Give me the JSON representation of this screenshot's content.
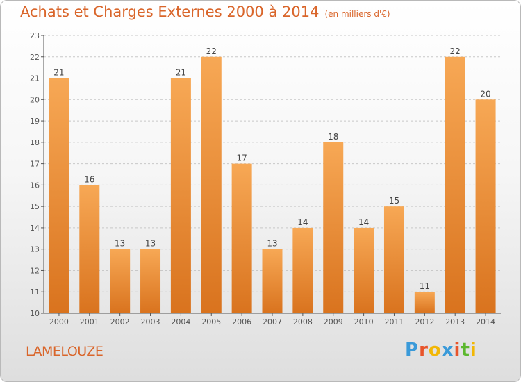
{
  "header": {
    "title": "Achats et Charges Externes 2000 à 2014",
    "unit": "(en milliers d'€)"
  },
  "footer": {
    "commune": "LAMELOUZE",
    "logo_text": "Proxiti",
    "logo_colors": [
      "#3a9ad9",
      "#e8542b",
      "#f2b705",
      "#3a9ad9",
      "#e8542b",
      "#5cb82e",
      "#f2b705"
    ]
  },
  "colors": {
    "bar_light": "#f7a855",
    "bar_dark": "#d9731e",
    "title": "#d9652a",
    "axis": "#555555",
    "grid": "#c8c8c8"
  },
  "chart_data": {
    "type": "bar",
    "title": "Achats et Charges Externes 2000 à 2014",
    "subtitle": "(en milliers d'€)",
    "xlabel": "",
    "ylabel": "",
    "categories": [
      "2000",
      "2001",
      "2002",
      "2003",
      "2004",
      "2005",
      "2006",
      "2007",
      "2008",
      "2009",
      "2010",
      "2011",
      "2012",
      "2013",
      "2014"
    ],
    "values": [
      21,
      16,
      13,
      13,
      21,
      22,
      17,
      13,
      14,
      18,
      14,
      15,
      11,
      22,
      20
    ],
    "ylim": [
      10,
      23
    ],
    "yticks": [
      10,
      11,
      12,
      13,
      14,
      15,
      16,
      17,
      18,
      19,
      20,
      21,
      22,
      23
    ],
    "grid": true,
    "data_labels": true
  }
}
